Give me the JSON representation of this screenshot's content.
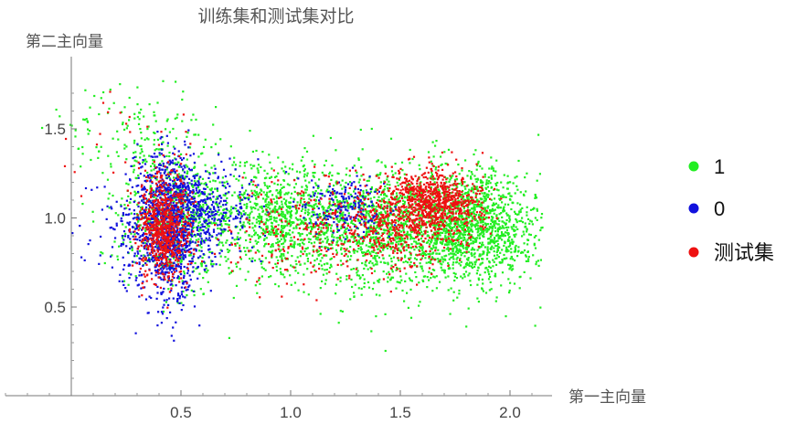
{
  "chart_data": {
    "type": "scatter",
    "title": "训练集和测试集对比",
    "xlabel": "第一主向量",
    "ylabel": "第二主向量",
    "xlim": [
      -0.32,
      2.18
    ],
    "ylim": [
      0.0,
      1.83
    ],
    "x_ticks": [
      0.5,
      1.0,
      1.5,
      2.0
    ],
    "y_ticks": [
      0.5,
      1.0,
      1.5
    ],
    "x_tick_labels": [
      "0.5",
      "1.0",
      "1.5",
      "2.0"
    ],
    "y_tick_labels": [
      "0.5",
      "1.0",
      "1.5"
    ],
    "grid": false,
    "legend_position": "right",
    "series": [
      {
        "name": "1",
        "color": "#22ee22",
        "clusters": [
          {
            "cx": 0.48,
            "cy": 1.0,
            "sx": 0.13,
            "sy": 0.18,
            "n": 700
          },
          {
            "cx": 0.95,
            "cy": 1.0,
            "sx": 0.18,
            "sy": 0.16,
            "n": 900
          },
          {
            "cx": 1.45,
            "cy": 0.95,
            "sx": 0.22,
            "sy": 0.17,
            "n": 1300
          },
          {
            "cx": 1.85,
            "cy": 0.95,
            "sx": 0.14,
            "sy": 0.16,
            "n": 1200
          },
          {
            "cx": 0.3,
            "cy": 1.45,
            "sx": 0.15,
            "sy": 0.15,
            "n": 160
          }
        ]
      },
      {
        "name": "0",
        "color": "#1111dd",
        "clusters": [
          {
            "cx": 0.45,
            "cy": 0.95,
            "sx": 0.08,
            "sy": 0.2,
            "n": 1100
          },
          {
            "cx": 0.6,
            "cy": 1.05,
            "sx": 0.12,
            "sy": 0.12,
            "n": 300
          },
          {
            "cx": 1.25,
            "cy": 1.05,
            "sx": 0.1,
            "sy": 0.08,
            "n": 200
          },
          {
            "cx": 0.28,
            "cy": 0.9,
            "sx": 0.1,
            "sy": 0.15,
            "n": 120
          }
        ]
      },
      {
        "name": "测试集",
        "color": "#ee1111",
        "clusters": [
          {
            "cx": 0.42,
            "cy": 0.95,
            "sx": 0.06,
            "sy": 0.15,
            "n": 700
          },
          {
            "cx": 1.65,
            "cy": 1.1,
            "sx": 0.1,
            "sy": 0.08,
            "n": 700
          },
          {
            "cx": 1.5,
            "cy": 0.95,
            "sx": 0.18,
            "sy": 0.12,
            "n": 500
          },
          {
            "cx": 1.05,
            "cy": 0.95,
            "sx": 0.2,
            "sy": 0.15,
            "n": 200
          },
          {
            "cx": 0.2,
            "cy": 1.4,
            "sx": 0.2,
            "sy": 0.2,
            "n": 30
          }
        ]
      }
    ]
  }
}
